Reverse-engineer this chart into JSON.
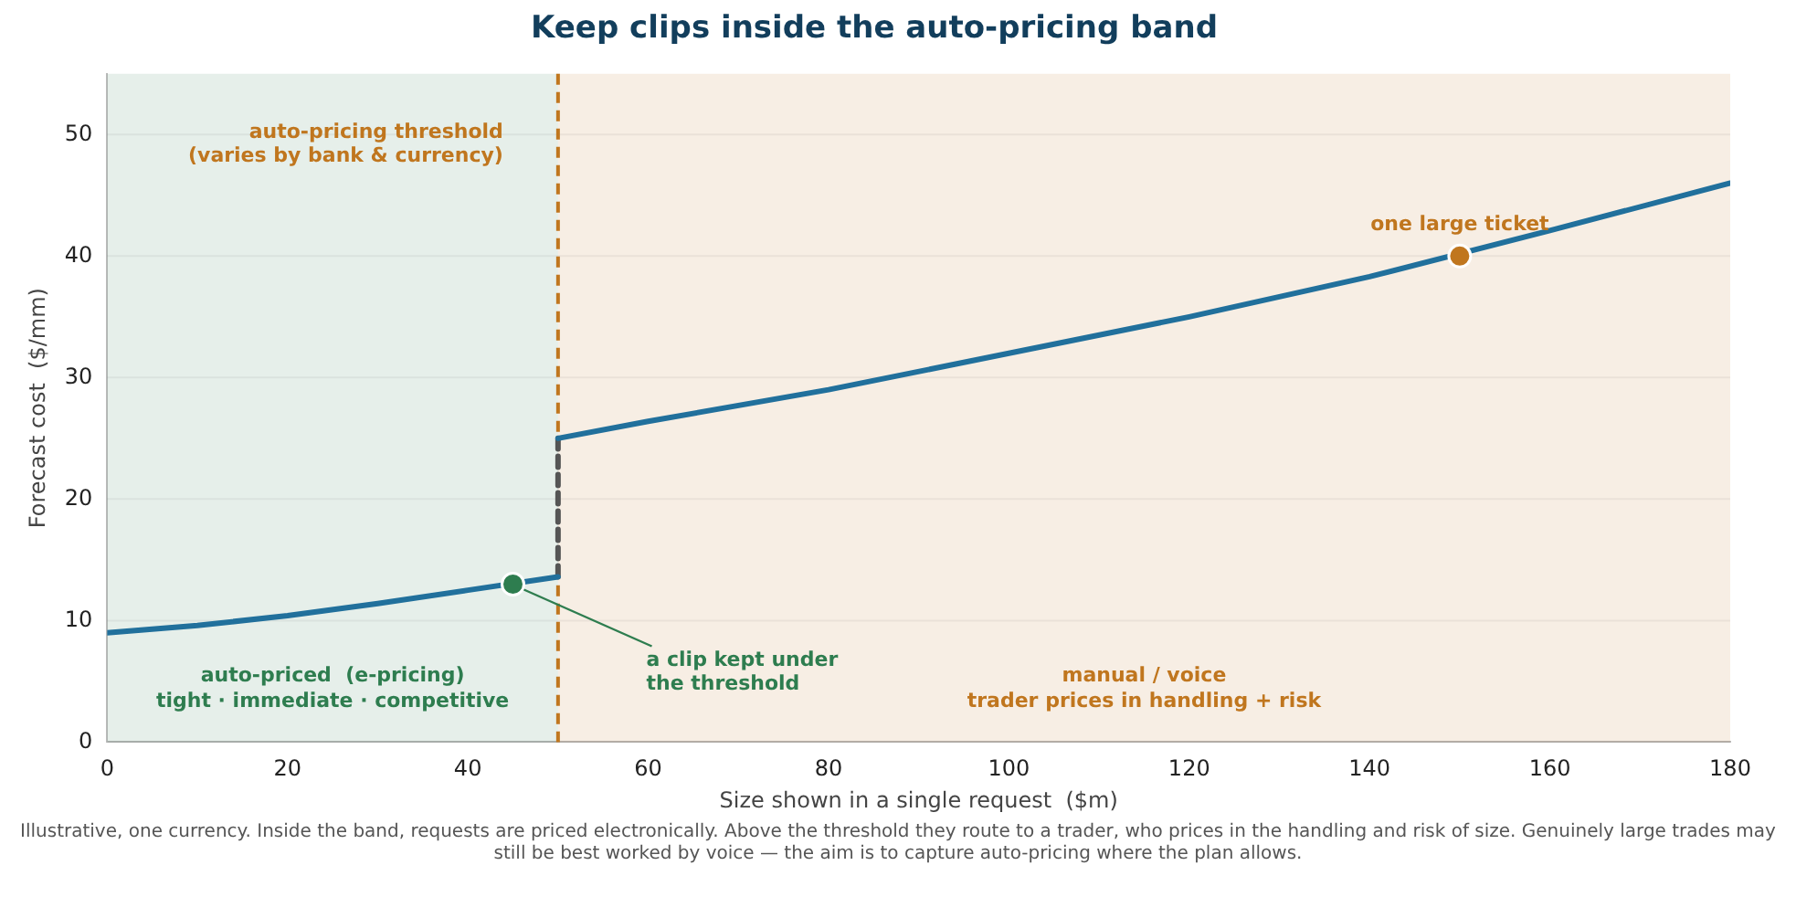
{
  "chart_data": {
    "type": "line",
    "title": "Keep clips inside the auto-pricing band",
    "xlabel": "Size shown in a single request  ($m)",
    "ylabel": "Forecast cost  ($/mm)",
    "xlim": [
      0,
      180
    ],
    "xticks": [
      0,
      20,
      40,
      60,
      80,
      100,
      120,
      140,
      160,
      180
    ],
    "ylim": [
      0,
      55
    ],
    "yticks": [
      0,
      10,
      20,
      30,
      40,
      50
    ],
    "grid": "y",
    "legend": false,
    "series": [
      {
        "color": "#21709c",
        "x": [
          0,
          10,
          20,
          30,
          40,
          50
        ],
        "values": [
          9,
          9.6,
          10.4,
          11.4,
          12.5,
          13.6
        ]
      },
      {
        "color": "#21709c",
        "x": [
          50,
          60,
          80,
          100,
          120,
          140,
          160,
          180
        ],
        "values": [
          25,
          26.4,
          29,
          32,
          35,
          38.3,
          42.1,
          46
        ]
      },
      {
        "color": "#555555",
        "x": [
          50,
          50
        ],
        "values": [
          13.6,
          25
        ],
        "line_style": "dashed"
      },
      {
        "type": "scatter",
        "color": "#2e7d4f",
        "x": [
          45
        ],
        "values": [
          13
        ],
        "marker": "circle"
      },
      {
        "type": "scatter",
        "color": "#c0761e",
        "x": [
          150
        ],
        "values": [
          40
        ],
        "marker": "circle"
      }
    ],
    "bands": [
      {
        "axis": "x",
        "from": 0,
        "to": 50,
        "label": "auto-priced  (e-pricing)\ntight · immediate · competitive",
        "color": "#2e7d4f"
      },
      {
        "axis": "x",
        "from": 50,
        "to": 180,
        "label": "manual / voice\ntrader prices in handling + risk",
        "color": "#c0761e"
      }
    ],
    "ref_lines": [
      {
        "axis": "x",
        "value": 50,
        "label": "auto-pricing threshold\n(varies by bank & currency)",
        "color": "#c0761e",
        "line_style": "dashed"
      }
    ],
    "annotations": [
      {
        "text": "one large ticket",
        "x": 150,
        "y": 40
      },
      {
        "text": "a clip kept under\nthe threshold",
        "x": 45,
        "y": 13
      },
      "Illustrative, one currency. Inside the band, requests are priced electronically. Above the threshold they route to a trader, who prices in the handling and risk of size. Genuinely large trades may still be best worked by voice — the aim is to capture auto-pricing where the plan allows."
    ]
  }
}
